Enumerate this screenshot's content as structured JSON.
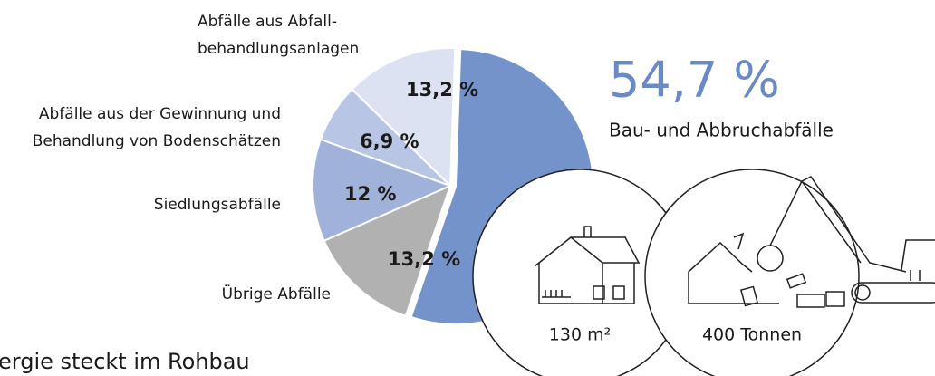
{
  "chart_data": {
    "type": "pie",
    "categories": [
      [
        "Bau- und Abbruchabfälle"
      ],
      [
        "Übrige Abfälle"
      ],
      [
        "Siedlungsabfälle"
      ],
      [
        "Abfälle aus der Gewinnung und",
        "Behandlung von Bodenschätzen"
      ],
      [
        "Abfälle aus Abfall-",
        "behandlungsanlagen"
      ]
    ],
    "values": [
      54.7,
      13.2,
      12,
      6.9,
      13.2
    ],
    "value_labels": [
      "54,7 %",
      "13,2 %",
      "12 %",
      "6,9 %",
      "13,2 %"
    ],
    "colors": [
      "#7593cb",
      "#b1b1b1",
      "#a0b1da",
      "#b8c5e5",
      "#dde2f2"
    ],
    "circles": [
      "130 m²",
      "400 Tonnen"
    ],
    "footer": "ergie steckt im Rohbau"
  }
}
